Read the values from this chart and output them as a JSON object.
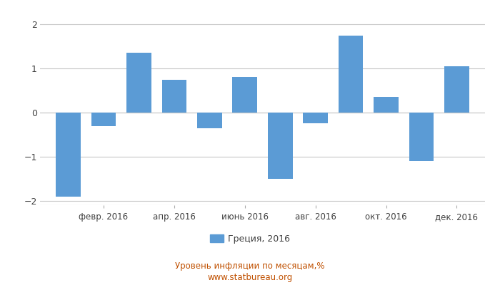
{
  "months": [
    1,
    2,
    3,
    4,
    5,
    6,
    7,
    8,
    9,
    10,
    11,
    12
  ],
  "tick_labels": [
    "февр. 2016",
    "апр. 2016",
    "июнь 2016",
    "авг. 2016",
    "окт. 2016",
    "дек. 2016"
  ],
  "tick_positions": [
    2,
    4,
    6,
    8,
    10,
    12
  ],
  "values": [
    -1.9,
    -0.3,
    1.35,
    0.75,
    -0.35,
    0.8,
    -1.5,
    -0.25,
    1.75,
    0.35,
    -1.1,
    1.05
  ],
  "bar_color": "#5b9bd5",
  "ylim": [
    -2.1,
    2.1
  ],
  "yticks": [
    -2,
    -1,
    0,
    1,
    2
  ],
  "legend_label": "Греция, 2016",
  "footer_line1": "Уровень инфляции по месяцам,%",
  "footer_line2": "www.statbureau.org",
  "background_color": "#ffffff",
  "grid_color": "#c8c8c8",
  "bar_width": 0.7,
  "footer_color": "#c05000",
  "tick_label_color": "#404040",
  "legend_text_color": "#404040"
}
